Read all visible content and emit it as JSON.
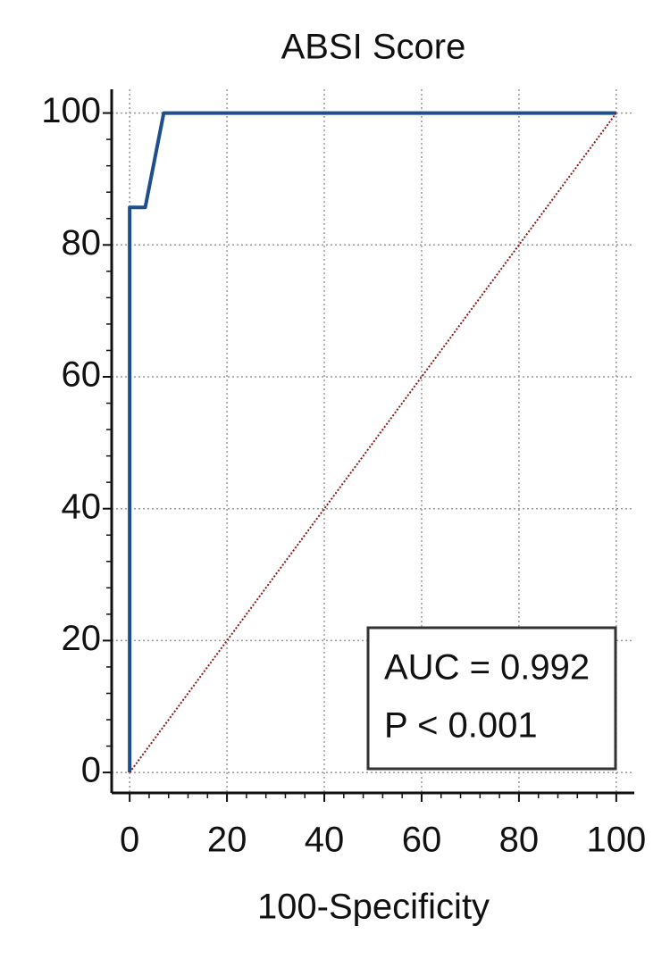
{
  "chart_data": {
    "type": "line",
    "title": "ABSI Score",
    "xlabel": "100-Specificity",
    "xlim": [
      -3.7,
      103.7
    ],
    "ylim": [
      -3.1,
      103.6
    ],
    "xticks": [
      0,
      20,
      40,
      60,
      80,
      100
    ],
    "yticks": [
      0,
      20,
      40,
      60,
      80,
      100
    ],
    "minor_tick_step": 4,
    "grid": true,
    "series": [
      {
        "color": "#1f4e8c",
        "style": "solid",
        "x": [
          0,
          0,
          3.2,
          7,
          100
        ],
        "values": [
          0,
          85.7,
          85.7,
          100,
          100
        ]
      },
      {
        "color": "#8b1a1a",
        "style": "dotted",
        "x": [
          0,
          100
        ],
        "values": [
          0,
          100
        ]
      }
    ],
    "annotations": [
      "AUC = 0.992",
      "P < 0.001"
    ]
  }
}
